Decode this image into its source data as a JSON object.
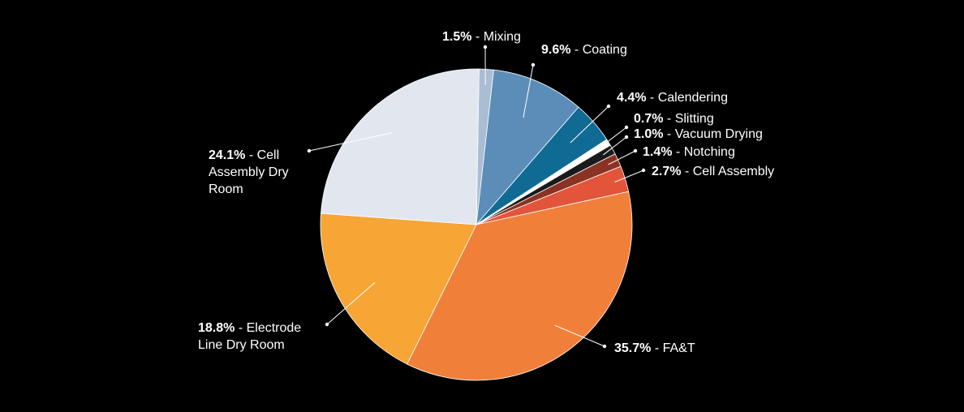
{
  "chart_data": {
    "type": "pie",
    "title": "",
    "background": "#000000",
    "slices": [
      {
        "label": "Mixing",
        "value": 1.5,
        "value_text": "1.5%",
        "color": "#a9bdd4"
      },
      {
        "label": "Coating",
        "value": 9.6,
        "value_text": "9.6%",
        "color": "#5b8db8"
      },
      {
        "label": "Calendering",
        "value": 4.4,
        "value_text": "4.4%",
        "color": "#0f6b94"
      },
      {
        "label": "Slitting",
        "value": 0.7,
        "value_text": "0.7%",
        "color": "#ffffff"
      },
      {
        "label": "Vacuum Drying",
        "value": 1.0,
        "value_text": "1.0%",
        "color": "#1a1a1a"
      },
      {
        "label": "Notching",
        "value": 1.4,
        "value_text": "1.4%",
        "color": "#8a3223"
      },
      {
        "label": "Cell Assembly",
        "value": 2.7,
        "value_text": "2.7%",
        "color": "#e2553a"
      },
      {
        "label": "FA&T",
        "value": 35.7,
        "value_text": "35.7%",
        "color": "#f07f3a"
      },
      {
        "label": "Electrode Line Dry Room",
        "value": 18.8,
        "value_text": "18.8%",
        "color": "#f7a535"
      },
      {
        "label": "Cell Assembly Dry Room",
        "value": 24.1,
        "value_text": "24.1%",
        "color": "#e2e7ef"
      }
    ]
  }
}
